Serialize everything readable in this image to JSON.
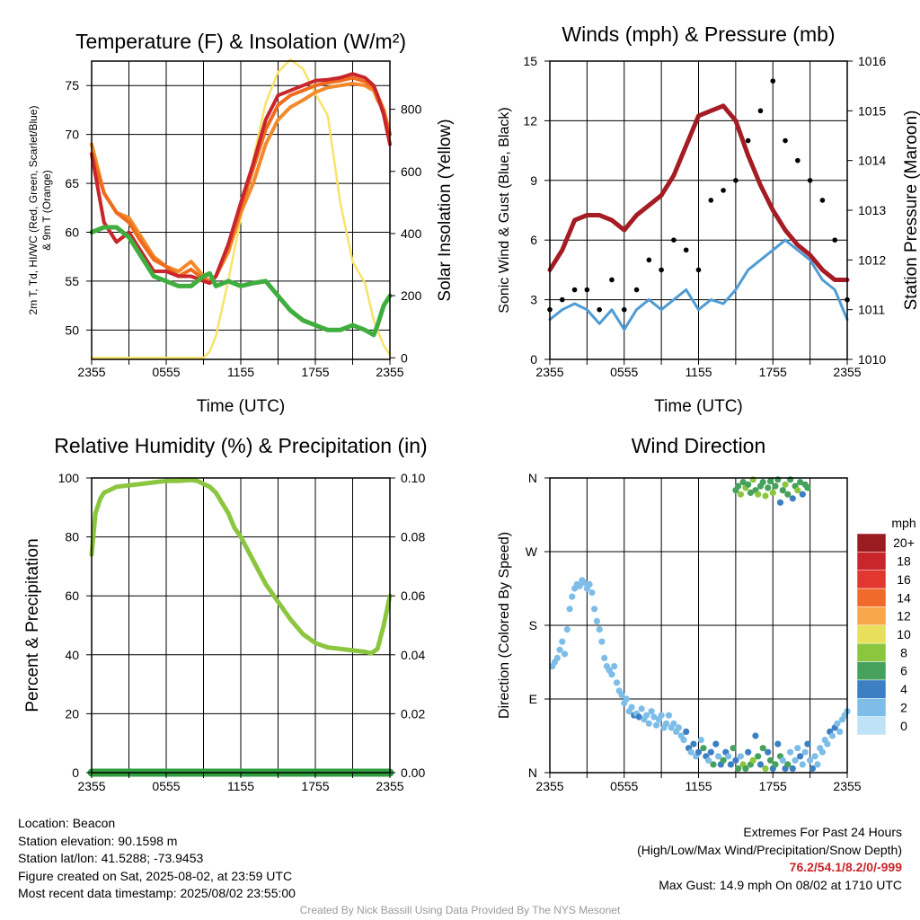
{
  "colors": {
    "temp": "#c8262b",
    "dewpoint": "#3fae3f",
    "heat_index": "#ef6c1f",
    "temp_9m": "#f28a2c",
    "solar": "#f7e36a",
    "wind_speed": "#4f9bd4",
    "wind_gust": "#000000",
    "pressure": "#a51c24",
    "humidity": "#8cc63f",
    "precip": "#2f9e3f",
    "grid": "#000000"
  },
  "x_ticks": [
    "2355",
    "0555",
    "1155",
    "1755",
    "2355"
  ],
  "chart_data": [
    {
      "id": "temperature",
      "type": "line",
      "title": "Temperature (F) & Insolation (W/m²)",
      "xlabel": "Time (UTC)",
      "ylabel_lines": [
        "2m T, Td, HI/WC (Red, Green, Scarlet/Blue)",
        "& 9m T (Orange)"
      ],
      "y2label": "Solar Insolation (Yellow)",
      "xlim": [
        0,
        24
      ],
      "ylim": [
        47,
        77.5
      ],
      "y_ticks": [
        50,
        55,
        60,
        65,
        70,
        75
      ],
      "y2lim": [
        -5,
        955
      ],
      "y2_ticks": [
        0,
        200,
        400,
        600,
        800
      ],
      "x": [
        0,
        1,
        2,
        3,
        4,
        5,
        6,
        7,
        8,
        9,
        9.5,
        10,
        11,
        12,
        13,
        14,
        15,
        16,
        17,
        18,
        19,
        20,
        21,
        22,
        22.7,
        23,
        23.5,
        24
      ],
      "series": [
        {
          "key": "temp_9m",
          "values": [
            69,
            64,
            62,
            61.5,
            59.5,
            57.5,
            56.5,
            56,
            57,
            55.5,
            55,
            55.5,
            58,
            62,
            65,
            69,
            71.5,
            72.8,
            73.5,
            74.3,
            74.8,
            75,
            75.2,
            75,
            74.5,
            73.5,
            72.5,
            70
          ]
        },
        {
          "key": "heat_index",
          "values": [
            68,
            64,
            62,
            61,
            59,
            57.2,
            56.5,
            55.5,
            56.2,
            55.2,
            54.8,
            55.5,
            58.5,
            62.5,
            66.5,
            70.5,
            73,
            74,
            74.5,
            75,
            75.3,
            75.5,
            75.8,
            75.4,
            74.8,
            74,
            72.5,
            70
          ]
        },
        {
          "key": "temp",
          "values": [
            68,
            61,
            59,
            60,
            58,
            56,
            56,
            55.5,
            55.5,
            55,
            54.8,
            55.5,
            58.8,
            63,
            67,
            71.5,
            74,
            74.5,
            75,
            75.5,
            75.6,
            75.8,
            76.2,
            75.8,
            75,
            74,
            72,
            69
          ]
        },
        {
          "key": "dewpoint",
          "values": [
            60,
            60.5,
            60.5,
            59.5,
            57.5,
            55.5,
            55,
            54.5,
            54.5,
            55.5,
            55.8,
            54.5,
            55,
            54.5,
            54.8,
            55,
            53.5,
            52,
            51,
            50.5,
            50,
            50,
            50.5,
            50,
            49.5,
            50.5,
            52.5,
            53.5
          ]
        },
        {
          "key": "solar",
          "axis": "y2",
          "values": [
            0,
            0,
            0,
            0,
            0,
            0,
            0,
            0,
            0,
            0,
            20,
            70,
            250,
            450,
            640,
            820,
            920,
            960,
            930,
            850,
            780,
            500,
            310,
            240,
            120,
            90,
            40,
            10
          ]
        }
      ]
    },
    {
      "id": "winds",
      "type": "line",
      "title": "Winds (mph) & Pressure (mb)",
      "xlabel": "Time (UTC)",
      "ylabel": "Sonic Wind & Gust (Blue, Black)",
      "y2label": "Station Pressure (Maroon)",
      "xlim": [
        0,
        24
      ],
      "ylim": [
        0,
        15
      ],
      "y_ticks": [
        0,
        3,
        6,
        9,
        12,
        15
      ],
      "y2lim": [
        1010,
        1016
      ],
      "y2_ticks": [
        1010,
        1011,
        1012,
        1013,
        1014,
        1015,
        1016
      ],
      "x": [
        0,
        1,
        2,
        3,
        4,
        5,
        6,
        7,
        8,
        9,
        10,
        11,
        12,
        13,
        14,
        15,
        16,
        17,
        18,
        19,
        20,
        21,
        22,
        23,
        24
      ],
      "series": [
        {
          "key": "pressure",
          "axis": "y2",
          "values": [
            1011.8,
            1012.2,
            1012.8,
            1012.9,
            1012.9,
            1012.8,
            1012.6,
            1012.9,
            1013.1,
            1013.3,
            1013.7,
            1014.3,
            1014.9,
            1015,
            1015.1,
            1014.8,
            1014.1,
            1013.5,
            1013,
            1012.6,
            1012.3,
            1012.1,
            1011.8,
            1011.6,
            1011.6
          ]
        },
        {
          "key": "wind_speed",
          "values": [
            2,
            2.5,
            2.8,
            2.5,
            1.8,
            2.5,
            1.5,
            2.5,
            3,
            2.5,
            3,
            3.5,
            2.5,
            3,
            2.8,
            3.5,
            4.5,
            5,
            5.5,
            6,
            5.5,
            5,
            4,
            3.5,
            2
          ]
        },
        {
          "key": "wind_gust",
          "values": [
            2.5,
            3,
            3.5,
            3.5,
            2.5,
            4,
            2.5,
            3.5,
            5,
            4.5,
            6,
            5.5,
            4.5,
            8,
            8.5,
            9,
            11,
            12.5,
            14,
            11,
            10,
            9,
            8,
            6,
            3
          ]
        }
      ]
    },
    {
      "id": "humidity",
      "type": "line",
      "title": "Relative Humidity (%) & Precipitation (in)",
      "ylabel": "Percent & Precipitation",
      "xlim": [
        0,
        24
      ],
      "ylim": [
        0,
        100
      ],
      "y_ticks": [
        0,
        20,
        40,
        60,
        80,
        100
      ],
      "y2lim": [
        0,
        0.1
      ],
      "y2_ticks": [
        "0.00",
        "0.02",
        "0.04",
        "0.06",
        "0.08",
        "0.10"
      ],
      "x": [
        0,
        0.3,
        0.7,
        1,
        1.5,
        2,
        3,
        4,
        5,
        6,
        7,
        8,
        8.5,
        9,
        9.5,
        10,
        11,
        11.5,
        12,
        13,
        14,
        15,
        16,
        17,
        18,
        19,
        20,
        21,
        22,
        22.5,
        23,
        23.5,
        24
      ],
      "series": [
        {
          "key": "humidity",
          "values": [
            74,
            88,
            93,
            95,
            96,
            97,
            97.5,
            98,
            98.5,
            99,
            99,
            99.3,
            99,
            98,
            97,
            95,
            88,
            83,
            80,
            72,
            64,
            58,
            52,
            47,
            44,
            42.5,
            42,
            41.5,
            41,
            40.5,
            42,
            50,
            60
          ]
        },
        {
          "key": "precip",
          "axis": "y2",
          "values": [
            0,
            0,
            0,
            0,
            0,
            0,
            0,
            0,
            0,
            0,
            0,
            0,
            0,
            0,
            0,
            0,
            0,
            0,
            0,
            0,
            0,
            0,
            0,
            0,
            0,
            0,
            0,
            0,
            0,
            0,
            0,
            0,
            0
          ]
        }
      ]
    },
    {
      "id": "direction",
      "type": "scatter",
      "title": "Wind Direction",
      "ylabel": "Direction (Colored By Speed)",
      "xlim": [
        0,
        24
      ],
      "ylim": [
        0,
        360
      ],
      "y_tick_values": [
        0,
        90,
        180,
        270,
        360
      ],
      "y_tick_labels": [
        "N",
        "E",
        "S",
        "W",
        "N"
      ],
      "colorbar": {
        "title": "mph",
        "labels": [
          "20+",
          "18",
          "16",
          "14",
          "12",
          "10",
          "8",
          "6",
          "4",
          "2",
          "0"
        ],
        "colors": [
          "#9b1c20",
          "#c8262b",
          "#e2372f",
          "#f06a2b",
          "#f7a64a",
          "#e8e05a",
          "#8cc63f",
          "#45a15c",
          "#3c7fc2",
          "#7dbde8",
          "#bfe2f6"
        ]
      },
      "points": [
        [
          0.2,
          130,
          2
        ],
        [
          0.4,
          135,
          2
        ],
        [
          0.6,
          140,
          2
        ],
        [
          0.8,
          150,
          2
        ],
        [
          1.0,
          160,
          2
        ],
        [
          1.2,
          145,
          1
        ],
        [
          1.4,
          175,
          1
        ],
        [
          1.6,
          200,
          2
        ],
        [
          1.8,
          215,
          2
        ],
        [
          2.0,
          225,
          2
        ],
        [
          2.2,
          230,
          2
        ],
        [
          2.4,
          228,
          2
        ],
        [
          2.6,
          235,
          2
        ],
        [
          2.8,
          232,
          2
        ],
        [
          3.0,
          225,
          2
        ],
        [
          3.2,
          230,
          2
        ],
        [
          3.4,
          220,
          1
        ],
        [
          3.6,
          200,
          2
        ],
        [
          3.8,
          185,
          2
        ],
        [
          4.0,
          175,
          1
        ],
        [
          4.2,
          160,
          2
        ],
        [
          4.4,
          140,
          2
        ],
        [
          4.6,
          130,
          2
        ],
        [
          4.8,
          125,
          2
        ],
        [
          5.0,
          120,
          2
        ],
        [
          5.2,
          130,
          2
        ],
        [
          5.4,
          110,
          2
        ],
        [
          5.6,
          100,
          2
        ],
        [
          5.8,
          95,
          2
        ],
        [
          6.0,
          85,
          2
        ],
        [
          6.2,
          90,
          2
        ],
        [
          6.4,
          75,
          2
        ],
        [
          6.6,
          80,
          2
        ],
        [
          6.8,
          70,
          3
        ],
        [
          7.0,
          72,
          2
        ],
        [
          7.2,
          68,
          3
        ],
        [
          7.4,
          78,
          2
        ],
        [
          7.6,
          65,
          2
        ],
        [
          7.8,
          70,
          2
        ],
        [
          8.0,
          60,
          2
        ],
        [
          8.2,
          75,
          2
        ],
        [
          8.4,
          68,
          2
        ],
        [
          8.6,
          58,
          2
        ],
        [
          8.8,
          65,
          2
        ],
        [
          9.0,
          70,
          2
        ],
        [
          9.2,
          55,
          2
        ],
        [
          9.4,
          60,
          2
        ],
        [
          9.6,
          70,
          2
        ],
        [
          9.8,
          55,
          2
        ],
        [
          10.0,
          60,
          2
        ],
        [
          10.2,
          50,
          2
        ],
        [
          10.4,
          55,
          2
        ],
        [
          10.6,
          45,
          2
        ],
        [
          10.8,
          40,
          2
        ],
        [
          11.0,
          50,
          3
        ],
        [
          11.2,
          30,
          3
        ],
        [
          11.4,
          25,
          2
        ],
        [
          11.6,
          35,
          3
        ],
        [
          11.8,
          20,
          2
        ],
        [
          12.0,
          25,
          3
        ],
        [
          12.2,
          40,
          2
        ],
        [
          12.4,
          30,
          6
        ],
        [
          12.6,
          20,
          3
        ],
        [
          12.8,
          15,
          2
        ],
        [
          13.0,
          25,
          3
        ],
        [
          13.2,
          10,
          6
        ],
        [
          13.4,
          35,
          3
        ],
        [
          13.6,
          20,
          2
        ],
        [
          13.8,
          10,
          3
        ],
        [
          14.0,
          15,
          6
        ],
        [
          14.2,
          25,
          3
        ],
        [
          14.4,
          20,
          2
        ],
        [
          14.6,
          10,
          3
        ],
        [
          14.8,
          30,
          6
        ],
        [
          15.0,
          15,
          3
        ],
        [
          15.2,
          5,
          6
        ],
        [
          15.4,
          20,
          2
        ],
        [
          15.6,
          10,
          8
        ],
        [
          15.8,
          5,
          6
        ],
        [
          16.0,
          25,
          3
        ],
        [
          16.2,
          10,
          6
        ],
        [
          16.4,
          15,
          8
        ],
        [
          16.6,
          45,
          3
        ],
        [
          16.8,
          20,
          6
        ],
        [
          17.0,
          10,
          3
        ],
        [
          17.2,
          30,
          6
        ],
        [
          17.4,
          5,
          8
        ],
        [
          17.6,
          25,
          3
        ],
        [
          17.8,
          15,
          6
        ],
        [
          18.0,
          5,
          3
        ],
        [
          18.2,
          10,
          6
        ],
        [
          18.4,
          35,
          3
        ],
        [
          18.6,
          20,
          6
        ],
        [
          18.8,
          15,
          2
        ],
        [
          19.0,
          5,
          3
        ],
        [
          19.2,
          10,
          6
        ],
        [
          19.4,
          25,
          2
        ],
        [
          19.6,
          5,
          3
        ],
        [
          19.8,
          15,
          2
        ],
        [
          20.0,
          30,
          2
        ],
        [
          20.2,
          20,
          3
        ],
        [
          20.4,
          10,
          2
        ],
        [
          20.6,
          25,
          2
        ],
        [
          20.8,
          35,
          3
        ],
        [
          21.0,
          15,
          2
        ],
        [
          21.2,
          5,
          3
        ],
        [
          21.4,
          20,
          2
        ],
        [
          21.6,
          10,
          2
        ],
        [
          21.8,
          30,
          2
        ],
        [
          22.0,
          25,
          2
        ],
        [
          22.2,
          40,
          2
        ],
        [
          22.4,
          35,
          2
        ],
        [
          22.6,
          50,
          3
        ],
        [
          22.8,
          45,
          2
        ],
        [
          23.0,
          55,
          3
        ],
        [
          23.2,
          60,
          2
        ],
        [
          23.4,
          50,
          2
        ],
        [
          23.6,
          65,
          2
        ],
        [
          23.8,
          70,
          2
        ],
        [
          24.0,
          75,
          2
        ],
        [
          15.0,
          345,
          6
        ],
        [
          15.2,
          350,
          6
        ],
        [
          15.4,
          340,
          8
        ],
        [
          15.6,
          355,
          6
        ],
        [
          15.8,
          348,
          8
        ],
        [
          16.0,
          352,
          6
        ],
        [
          16.2,
          342,
          6
        ],
        [
          16.4,
          358,
          8
        ],
        [
          16.6,
          345,
          6
        ],
        [
          16.8,
          340,
          8
        ],
        [
          17.0,
          350,
          6
        ],
        [
          17.2,
          355,
          6
        ],
        [
          17.4,
          338,
          8
        ],
        [
          17.6,
          348,
          6
        ],
        [
          17.8,
          356,
          6
        ],
        [
          18.0,
          342,
          8
        ],
        [
          18.2,
          350,
          6
        ],
        [
          18.4,
          358,
          6
        ],
        [
          18.6,
          330,
          3
        ],
        [
          18.8,
          345,
          6
        ],
        [
          19.0,
          352,
          8
        ],
        [
          19.2,
          340,
          6
        ],
        [
          19.4,
          358,
          6
        ],
        [
          19.6,
          335,
          3
        ],
        [
          19.8,
          350,
          6
        ],
        [
          20.0,
          345,
          8
        ],
        [
          20.2,
          355,
          6
        ],
        [
          20.4,
          340,
          3
        ],
        [
          20.6,
          352,
          6
        ],
        [
          20.8,
          348,
          6
        ]
      ]
    }
  ],
  "info": {
    "location": "Location: Beacon",
    "elevation": "Station elevation: 90.1598 m",
    "latlon": "Station lat/lon: 41.5288; -73.9453",
    "created": "Figure created on Sat, 2025-08-02, at 23:59 UTC",
    "recent": "Most recent data timestamp: 2025/08/02 23:55:00"
  },
  "extremes": {
    "title": "Extremes For Past 24 Hours",
    "legend": "(High/Low/Max Wind/Precipitation/Snow Depth)",
    "values": "76.2/54.1/8.2/0/-999",
    "gust": "Max Gust: 14.9 mph On 08/02 at 1710 UTC"
  },
  "credit": "Created By Nick Bassill Using Data Provided By The NYS Mesonet"
}
